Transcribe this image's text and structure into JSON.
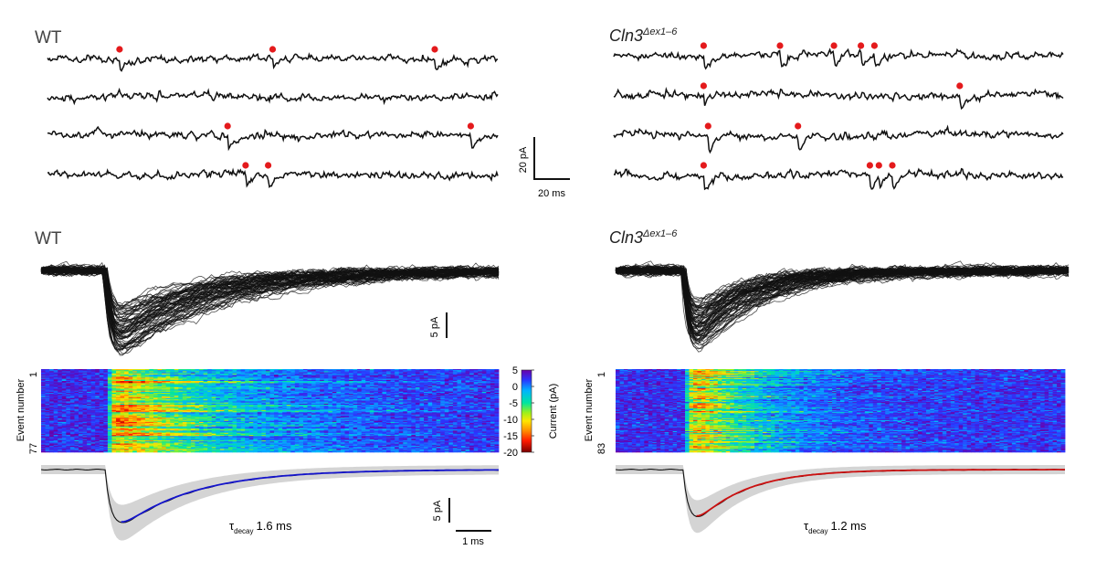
{
  "panels": {
    "wt_label": "WT",
    "ko_label_base": "Cln3",
    "ko_label_sup": "Δex1–6",
    "scale_top_y": "20 pA",
    "scale_top_x": "20 ms",
    "scale_mid_y": "5 pA",
    "scale_bot_y": "5 pA",
    "scale_bot_x": "1 ms",
    "heatmap_ylabel": "Event number",
    "colorbar_label": "Current (pA)",
    "wt_fit_tau_symbol": "τ",
    "wt_fit_tau_sub": "decay",
    "wt_fit_tau_value": "1.6 ms",
    "ko_fit_tau_symbol": "τ",
    "ko_fit_tau_sub": "decay",
    "ko_fit_tau_value": "1.2 ms"
  },
  "chart_data": [
    {
      "type": "line",
      "panel": "WT raw traces",
      "series_count": 4,
      "events_per_sweep": [
        [
          0.16,
          0.5,
          0.86
        ],
        [],
        [
          0.4,
          0.94
        ],
        [
          0.44,
          0.49
        ]
      ],
      "scale_bar": {
        "current_pA": 20,
        "time_ms": 20
      }
    },
    {
      "type": "line",
      "panel": "Cln3 raw traces",
      "series_count": 4,
      "events_per_sweep": [
        [
          0.2,
          0.37,
          0.49,
          0.55,
          0.58
        ],
        [
          0.2,
          0.77
        ],
        [
          0.21,
          0.41
        ],
        [
          0.2,
          0.57,
          0.59,
          0.62
        ]
      ],
      "scale_bar": {
        "current_pA": 20,
        "time_ms": 20
      }
    },
    {
      "type": "line",
      "panel": "WT overlaid events",
      "event_count": 77,
      "scale_bar": {
        "current_pA": 5
      }
    },
    {
      "type": "line",
      "panel": "Cln3 overlaid events",
      "event_count": 83,
      "scale_bar": {
        "current_pA": 5
      }
    },
    {
      "type": "heatmap",
      "panel": "WT event heatmap",
      "ylabel": "Event number",
      "yticks": [
        "1",
        "77"
      ],
      "colorbar": {
        "label": "Current (pA)",
        "ticks": [
          5,
          0,
          -5,
          -10,
          -15,
          -20
        ],
        "range": [
          -20,
          5
        ]
      }
    },
    {
      "type": "heatmap",
      "panel": "Cln3 event heatmap",
      "ylabel": "Event number",
      "yticks": [
        "1",
        "83"
      ]
    },
    {
      "type": "line",
      "panel": "WT average with fit",
      "tau_decay_ms": 1.6,
      "fit_color": "#1515cc",
      "scale_bar": {
        "current_pA": 5,
        "time_ms": 1
      }
    },
    {
      "type": "line",
      "panel": "Cln3 average with fit",
      "tau_decay_ms": 1.2,
      "fit_color": "#cc1111",
      "scale_bar": {
        "current_pA": 5,
        "time_ms": 1
      }
    }
  ],
  "colors": {
    "trace": "#111111",
    "event_marker": "#e41a1c",
    "sd_band": "#d4d4d4",
    "wt_fit": "#1515cc",
    "ko_fit": "#cc1111"
  }
}
